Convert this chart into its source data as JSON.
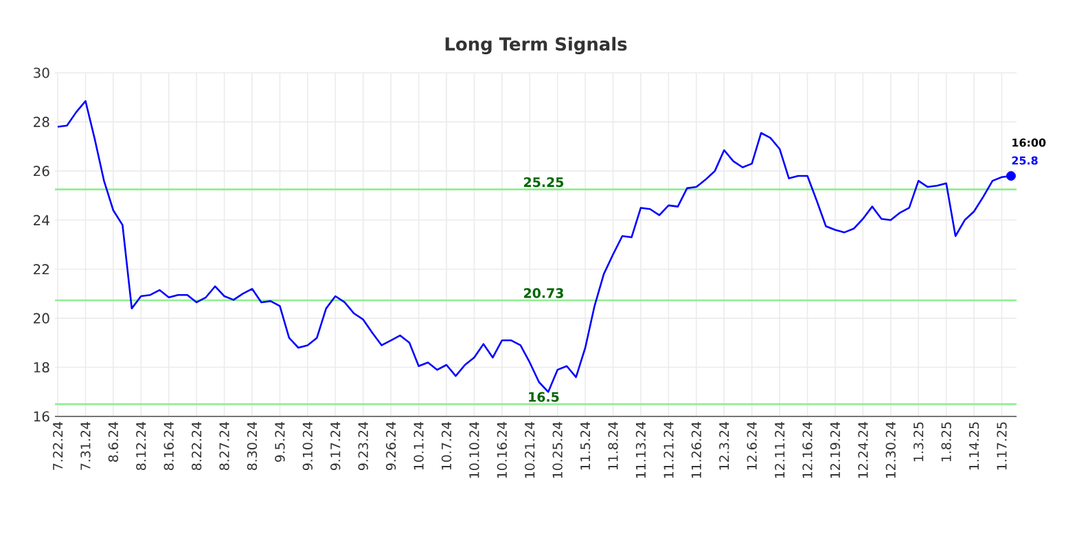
{
  "chart_data": {
    "type": "line",
    "title": "Long Term Signals",
    "categories": [
      "7.22.24",
      null,
      null,
      "7.31.24",
      null,
      null,
      "8.6.24",
      null,
      null,
      "8.12.24",
      null,
      null,
      "8.16.24",
      null,
      null,
      "8.22.24",
      null,
      null,
      "8.27.24",
      null,
      null,
      "8.30.24",
      null,
      null,
      "9.5.24",
      null,
      null,
      "9.10.24",
      null,
      null,
      "9.17.24",
      null,
      null,
      "9.23.24",
      null,
      null,
      "9.26.24",
      null,
      null,
      "10.1.24",
      null,
      null,
      "10.7.24",
      null,
      null,
      "10.10.24",
      null,
      null,
      "10.16.24",
      null,
      null,
      "10.21.24",
      null,
      null,
      "10.25.24",
      null,
      null,
      "11.5.24",
      null,
      null,
      "11.8.24",
      null,
      null,
      "11.13.24",
      null,
      null,
      "11.21.24",
      null,
      null,
      "11.26.24",
      null,
      null,
      "12.3.24",
      null,
      null,
      "12.6.24",
      null,
      null,
      "12.11.24",
      null,
      null,
      "12.16.24",
      null,
      null,
      "12.19.24",
      null,
      null,
      "12.24.24",
      null,
      null,
      "12.30.24",
      null,
      null,
      "1.3.25",
      null,
      null,
      "1.8.25",
      null,
      null,
      "1.14.25",
      null,
      null,
      "1.17.25",
      null
    ],
    "series": [
      {
        "color": "#0000ff",
        "values": [
          27.8,
          27.85,
          28.4,
          28.85,
          27.3,
          25.6,
          24.4,
          23.8,
          20.4,
          20.9,
          20.95,
          21.15,
          20.85,
          20.95,
          20.95,
          20.65,
          20.85,
          21.3,
          20.9,
          20.75,
          21.0,
          21.2,
          20.65,
          20.7,
          20.5,
          19.2,
          18.8,
          18.9,
          19.2,
          20.4,
          20.9,
          20.65,
          20.2,
          19.95,
          19.4,
          18.9,
          19.1,
          19.3,
          19.0,
          18.05,
          18.2,
          17.9,
          18.1,
          17.65,
          18.1,
          18.4,
          18.95,
          18.4,
          19.1,
          19.1,
          18.9,
          18.2,
          17.4,
          17.0,
          17.9,
          18.05,
          17.6,
          18.8,
          20.5,
          21.8,
          22.6,
          23.35,
          23.3,
          24.5,
          24.45,
          24.2,
          24.6,
          24.55,
          25.3,
          25.35,
          25.65,
          26.0,
          26.85,
          26.4,
          26.15,
          26.3,
          27.55,
          27.35,
          26.9,
          25.7,
          25.8,
          25.8,
          24.8,
          23.75,
          23.6,
          23.5,
          23.65,
          24.05,
          24.55,
          24.05,
          24.0,
          24.3,
          24.5,
          25.6,
          25.35,
          25.4,
          25.5,
          23.35,
          24.0,
          24.35,
          24.95,
          25.6,
          25.75,
          25.8
        ]
      },
      {
        "type": "scatter",
        "color": "#0000ff",
        "values": [
          null,
          null,
          null,
          null,
          null,
          null,
          null,
          null,
          null,
          null,
          null,
          null,
          null,
          null,
          null,
          null,
          null,
          null,
          null,
          null,
          null,
          null,
          null,
          null,
          null,
          null,
          null,
          null,
          null,
          null,
          null,
          null,
          null,
          null,
          null,
          null,
          null,
          null,
          null,
          null,
          null,
          null,
          null,
          null,
          null,
          null,
          null,
          null,
          null,
          null,
          null,
          null,
          null,
          null,
          null,
          null,
          null,
          null,
          null,
          null,
          null,
          null,
          null,
          null,
          null,
          null,
          null,
          null,
          null,
          null,
          null,
          null,
          null,
          null,
          null,
          null,
          null,
          null,
          null,
          null,
          null,
          null,
          null,
          null,
          null,
          null,
          null,
          null,
          null,
          null,
          null,
          null,
          null,
          null,
          null,
          null,
          null,
          null,
          null,
          null,
          null,
          null,
          null,
          25.8
        ]
      }
    ],
    "ylim": [
      16,
      30
    ],
    "yticks": [
      16,
      18,
      20,
      22,
      24,
      26,
      28,
      30
    ],
    "grid": true,
    "ref_lines": [
      {
        "axis": "y",
        "value": 25.25,
        "label": "25.25",
        "color": "#90ee90"
      },
      {
        "axis": "y",
        "value": 20.73,
        "label": "20.73",
        "color": "#90ee90"
      },
      {
        "axis": "y",
        "value": 16.5,
        "label": "16.5",
        "color": "#90ee90"
      }
    ],
    "annotations": [
      "16:00",
      "25.8"
    ]
  }
}
